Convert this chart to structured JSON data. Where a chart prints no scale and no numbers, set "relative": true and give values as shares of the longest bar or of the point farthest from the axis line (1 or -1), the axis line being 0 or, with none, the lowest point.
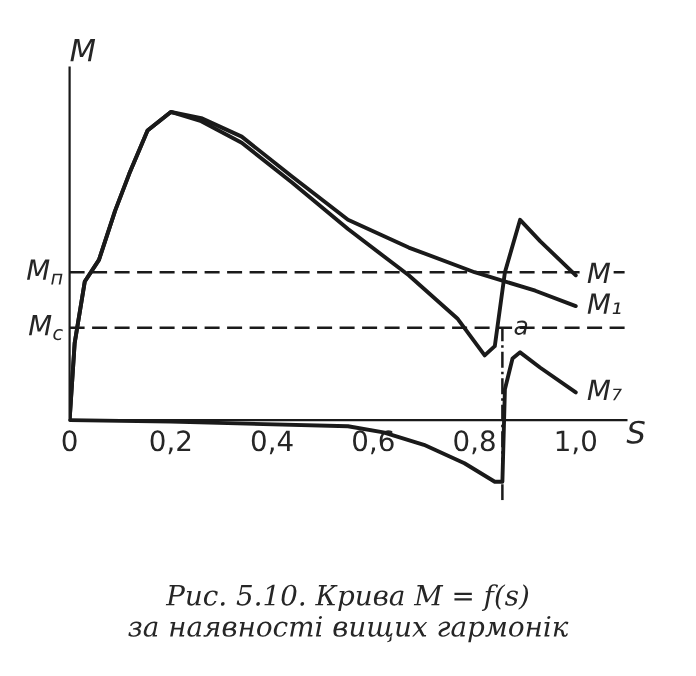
{
  "chart_data": {
    "type": "line",
    "title": "Рис. 5.10. Крива M = f(s)\nза наявності вищих гармонік",
    "xlabel": "S",
    "ylabel": "M",
    "relative": true,
    "tick_labels": "x",
    "grid": false,
    "legend": false,
    "marker": "none",
    "line_style": "solid",
    "xlim": [
      0,
      1.1
    ],
    "xticks": [
      0,
      {
        "value": 0.2,
        "label": "0,2"
      },
      {
        "value": 0.4,
        "label": "0,4"
      },
      {
        "value": 0.6,
        "label": "0,6"
      },
      {
        "value": 0.8,
        "label": "0,8"
      },
      {
        "value": 1.0,
        "label": "1,0"
      }
    ],
    "series": [
      {
        "name": "M₁",
        "color": "#1a1a1a",
        "x": [
          0,
          0.01,
          0.03,
          0.058,
          0.09,
          0.118,
          0.154,
          0.2,
          0.26,
          0.34,
          0.44,
          0.55,
          0.67,
          0.8,
          0.92,
          1.0
        ],
        "values": [
          0,
          0.25,
          0.45,
          0.52,
          0.68,
          0.8,
          0.94,
          1.0,
          0.98,
          0.92,
          0.79,
          0.65,
          0.56,
          0.48,
          0.42,
          0.37
        ]
      },
      {
        "name": "M",
        "color": "#1a1a1a",
        "x": [
          0,
          0.01,
          0.03,
          0.058,
          0.09,
          0.118,
          0.154,
          0.2,
          0.26,
          0.34,
          0.44,
          0.55,
          0.67,
          0.766,
          0.82,
          0.84,
          0.86,
          0.89,
          0.93,
          1.0
        ],
        "values": [
          0,
          0.25,
          0.45,
          0.52,
          0.68,
          0.8,
          0.94,
          1.0,
          0.97,
          0.9,
          0.77,
          0.62,
          0.47,
          0.33,
          0.21,
          0.24,
          0.48,
          0.65,
          0.58,
          0.47
        ]
      },
      {
        "name": "M₇",
        "color": "#1a1a1a",
        "x": [
          0,
          0.2,
          0.55,
          0.62,
          0.7,
          0.78,
          0.84,
          0.855,
          0.86,
          0.875,
          0.89,
          0.93,
          1.0
        ],
        "values": [
          0,
          -0.005,
          -0.02,
          -0.04,
          -0.08,
          -0.14,
          -0.2,
          -0.2,
          0.1,
          0.2,
          0.22,
          0.17,
          0.09
        ]
      }
    ],
    "ref_lines": [
      {
        "axis": "y",
        "value": 0.48,
        "label": "M$_{п}$",
        "line_style": "dashed"
      },
      {
        "axis": "y",
        "value": 0.3,
        "label": "M$_{с}$",
        "line_style": "dashed"
      },
      {
        "axis": "x",
        "value": 0.855,
        "line_style": "dashdot"
      }
    ],
    "annotations": [
      {
        "text": "a",
        "x": 0.855,
        "y": 0.3
      }
    ]
  }
}
